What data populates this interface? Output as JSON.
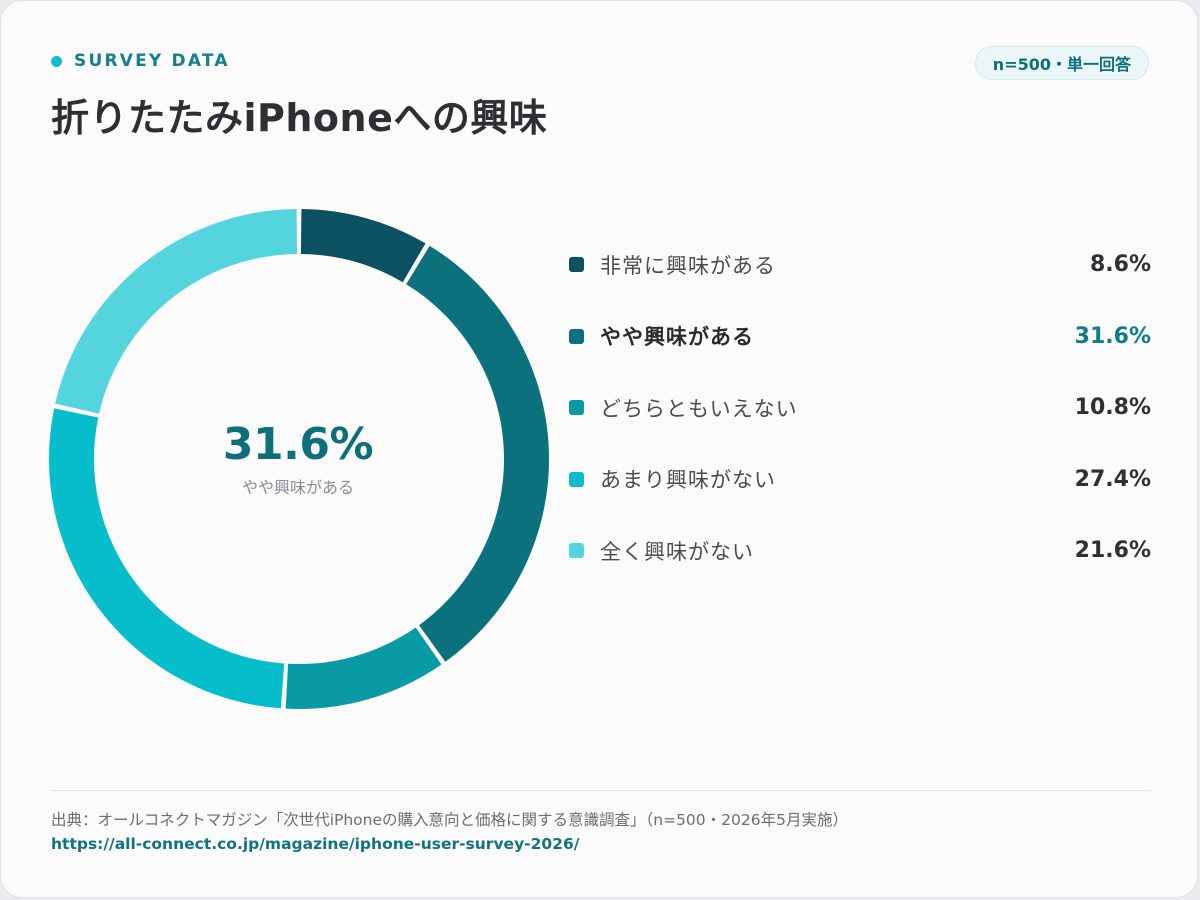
{
  "header": {
    "eyebrow": "SURVEY DATA",
    "title": "折りたたみiPhoneへの興味",
    "badge": "n=500・単一回答"
  },
  "center": {
    "value": "31.6%",
    "label": "やや興味がある"
  },
  "footer": {
    "source": "出典：オールコネクトマガジン「次世代iPhoneの購入意向と価格に関する意識調査」（n=500・2026年5月実施）",
    "url": "https://all-connect.co.jp/magazine/iphone-user-survey-2026/"
  },
  "colors": {
    "accent": "#13bcd0",
    "highlight_text": "#0f7c88"
  },
  "chart_data": {
    "type": "pie",
    "categories": [
      "非常に興味がある",
      "やや興味がある",
      "どちらともいえない",
      "あまり興味がない",
      "全く興味がない"
    ],
    "values": [
      8.6,
      31.6,
      10.8,
      27.4,
      21.6
    ],
    "value_labels": [
      "8.6%",
      "31.6%",
      "10.8%",
      "27.4%",
      "21.6%"
    ],
    "colors": [
      "#0b5161",
      "#0b727d",
      "#0a9aa5",
      "#06bdcc",
      "#54d5de"
    ],
    "highlight_index": 1,
    "donut": true,
    "legend": "right"
  }
}
